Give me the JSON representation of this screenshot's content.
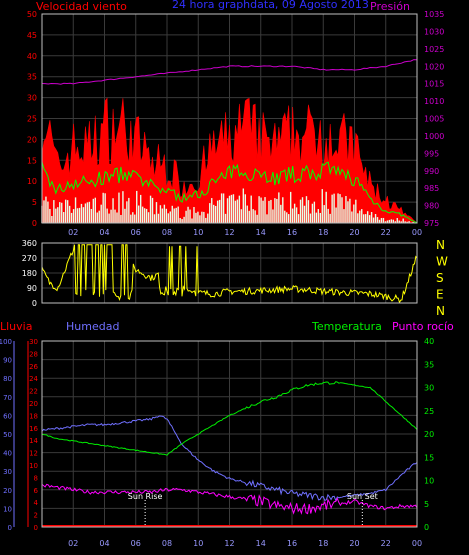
{
  "colors": {
    "background": "#000000",
    "frame": "#c0c0c0",
    "wind_gust": "#ff0000",
    "wind_avg_line": "#00ff00",
    "wind_speed": "#e8ffe8",
    "pressure": "#cc00cc",
    "direction": "#ffff00",
    "rain": "#ff0000",
    "humidity": "#7070ff",
    "temperature": "#00ee00",
    "dewpoint": "#ff00ff",
    "sun_marker": "#ffffff"
  },
  "chart_data": [
    {
      "type": "area",
      "title": "24 hora graphdata, 09 Agosto 2013",
      "left_axis_label": "Velocidad viento",
      "right_axis_label": "Presión",
      "x_ticks": [
        "02",
        "04",
        "06",
        "08",
        "10",
        "12",
        "14",
        "16",
        "18",
        "20",
        "22",
        "00"
      ],
      "y_left_ticks": [
        "0",
        "5",
        "10",
        "15",
        "20",
        "25",
        "30",
        "35",
        "40",
        "45",
        "50"
      ],
      "ylim_left": [
        0,
        50
      ],
      "y_right_ticks": [
        "975",
        "980",
        "985",
        "990",
        "995",
        "1000",
        "1005",
        "1010",
        "1015",
        "1020",
        "1025",
        "1030",
        "1035"
      ],
      "ylim_right": [
        975,
        1035
      ],
      "xlim_hours": [
        0,
        24
      ],
      "grid": true,
      "series": [
        {
          "key": "gust",
          "hours": [
            0,
            0.5,
            1,
            2,
            3,
            4,
            5,
            6,
            7,
            8,
            9,
            10,
            11,
            12,
            13,
            14,
            15,
            16,
            17,
            18,
            19,
            20,
            21,
            22,
            23,
            24
          ],
          "values": [
            30,
            22,
            14,
            20,
            20,
            25,
            26,
            22,
            16,
            15,
            10,
            12,
            20,
            22,
            26,
            22,
            20,
            24,
            23,
            25,
            22,
            20,
            10,
            6,
            3,
            0
          ]
        },
        {
          "key": "average",
          "hours": [
            0,
            0.5,
            1,
            2,
            3,
            4,
            5,
            6,
            7,
            8,
            9,
            10,
            11,
            12,
            13,
            14,
            15,
            16,
            17,
            18,
            19,
            20,
            21,
            22,
            23,
            24
          ],
          "values": [
            13,
            10,
            8,
            10,
            10,
            11,
            12,
            11,
            9,
            8,
            6,
            7,
            10,
            12,
            13,
            12,
            11,
            12,
            12,
            13,
            12,
            11,
            6,
            3,
            2,
            0
          ]
        },
        {
          "key": "speed",
          "hours": [
            0,
            0.5,
            1,
            2,
            3,
            4,
            5,
            6,
            7,
            8,
            9,
            10,
            11,
            12,
            13,
            14,
            15,
            16,
            17,
            18,
            19,
            20,
            21,
            22,
            23,
            24
          ],
          "values": [
            7,
            5,
            4,
            5,
            5,
            6,
            6,
            6,
            5,
            4,
            3,
            3,
            5,
            6,
            7,
            6,
            6,
            6,
            6,
            7,
            6,
            5,
            3,
            1,
            1,
            0
          ]
        },
        {
          "key": "pressure",
          "hours": [
            0,
            2,
            4,
            6,
            8,
            10,
            12,
            14,
            16,
            18,
            20,
            22,
            24
          ],
          "values": [
            1015,
            1015,
            1016,
            1017,
            1018,
            1019,
            1020,
            1020,
            1020,
            1019,
            1019,
            1020,
            1022
          ]
        }
      ]
    },
    {
      "type": "line",
      "right_labels": [
        "N",
        "W",
        "S",
        "E",
        "N"
      ],
      "y_ticks": [
        "0",
        "90",
        "180",
        "270",
        "360"
      ],
      "ylim": [
        0,
        360
      ],
      "xlim_hours": [
        0,
        24
      ],
      "series": [
        {
          "key": "direction",
          "hours": [
            0,
            0.5,
            1,
            2,
            3,
            4,
            5,
            6,
            7,
            8,
            9,
            10,
            11,
            12,
            13,
            14,
            15,
            16,
            17,
            18,
            19,
            20,
            21,
            22,
            23,
            24
          ],
          "values": [
            200,
            120,
            90,
            320,
            330,
            330,
            320,
            200,
            150,
            200,
            330,
            60,
            55,
            70,
            70,
            75,
            80,
            85,
            80,
            70,
            65,
            60,
            55,
            40,
            20,
            280
          ]
        }
      ]
    },
    {
      "type": "line",
      "labels": {
        "rain": "Lluvia",
        "humidity": "Humedad",
        "temperature": "Temperatura",
        "dewpoint": "Punto rocío"
      },
      "x_ticks": [
        "02",
        "04",
        "06",
        "08",
        "10",
        "12",
        "14",
        "16",
        "18",
        "20",
        "22",
        "00"
      ],
      "y_ticks_humidity": [
        "0",
        "10",
        "20",
        "30",
        "40",
        "50",
        "60",
        "70",
        "80",
        "90",
        "100"
      ],
      "ylim_humidity": [
        0,
        100
      ],
      "y_ticks_rain": [
        "0",
        "2",
        "4",
        "6",
        "8",
        "10",
        "12",
        "14",
        "16",
        "18",
        "20",
        "22",
        "24",
        "26",
        "28",
        "30"
      ],
      "ylim_rain": [
        0,
        30
      ],
      "y_ticks_temp": [
        "0",
        "5",
        "10",
        "15",
        "20",
        "25",
        "30",
        "35",
        "40"
      ],
      "ylim_temp": [
        0,
        40
      ],
      "xlim_hours": [
        0,
        24
      ],
      "annotations": [
        {
          "label": "Sun Rise",
          "hour": 6.6
        },
        {
          "label": "Sun Set",
          "hour": 20.5
        }
      ],
      "series": [
        {
          "key": "humidity",
          "hours": [
            0,
            1,
            2,
            3,
            4,
            5,
            6,
            7,
            7.5,
            8,
            9,
            10,
            11,
            12,
            13,
            14,
            15,
            16,
            17,
            18,
            19,
            20,
            21,
            22,
            23,
            24
          ],
          "values": [
            52,
            53,
            54,
            55,
            55,
            56,
            57,
            58,
            60,
            58,
            44,
            36,
            30,
            26,
            24,
            22,
            20,
            18,
            17,
            16,
            16,
            17,
            18,
            20,
            28,
            35
          ]
        },
        {
          "key": "temperature",
          "hours": [
            0,
            1,
            2,
            3,
            4,
            5,
            6,
            7,
            8,
            9,
            10,
            11,
            12,
            13,
            14,
            15,
            16,
            17,
            18,
            19,
            20,
            21,
            22,
            23,
            24
          ],
          "values": [
            20,
            19,
            18.5,
            18,
            17.5,
            17,
            16.5,
            16,
            15.5,
            18,
            20,
            22,
            24,
            25.5,
            27,
            28,
            29.5,
            30.5,
            31,
            31,
            30.5,
            30,
            27,
            24,
            21
          ]
        },
        {
          "key": "dewpoint",
          "hours": [
            0,
            1,
            2,
            3,
            4,
            5,
            6,
            7,
            8,
            9,
            10,
            11,
            12,
            13,
            14,
            15,
            16,
            17,
            18,
            19,
            20,
            21,
            22,
            23,
            24
          ],
          "values": [
            9,
            8.5,
            8,
            7.5,
            7.5,
            7.5,
            7.5,
            7.5,
            8,
            8,
            7.5,
            7,
            6.5,
            6,
            5.5,
            4.5,
            4,
            4,
            4.5,
            5,
            5.5,
            4.5,
            4,
            4.5,
            4.5
          ]
        },
        {
          "key": "rain",
          "hours": [
            0,
            24
          ],
          "values": [
            0,
            0
          ]
        }
      ]
    }
  ]
}
